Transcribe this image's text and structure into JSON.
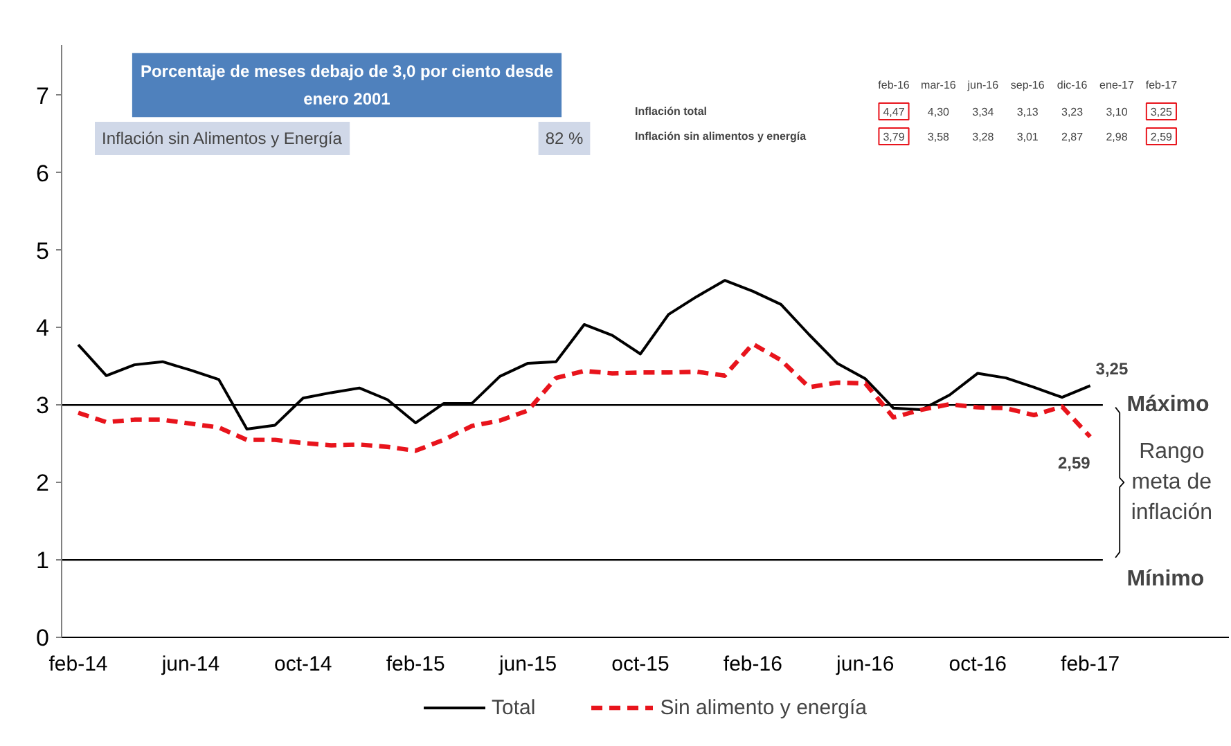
{
  "chart_data": {
    "type": "line",
    "categories": [
      "feb-14",
      null,
      null,
      null,
      "jun-14",
      null,
      null,
      null,
      "oct-14",
      null,
      null,
      null,
      "feb-15",
      null,
      null,
      null,
      "jun-15",
      null,
      null,
      null,
      "oct-15",
      null,
      null,
      null,
      "feb-16",
      null,
      null,
      null,
      "jun-16",
      null,
      null,
      null,
      "oct-16",
      null,
      null,
      null,
      "feb-17"
    ],
    "series": [
      {
        "name": "Total",
        "color": "#000000",
        "line_style": "solid",
        "values": [
          3.78,
          3.38,
          3.52,
          3.56,
          3.45,
          3.33,
          2.69,
          2.74,
          3.09,
          3.16,
          3.22,
          3.07,
          2.77,
          3.02,
          3.02,
          3.37,
          3.54,
          3.56,
          4.04,
          3.9,
          3.66,
          4.17,
          4.4,
          4.61,
          4.47,
          4.3,
          3.91,
          3.54,
          3.34,
          2.96,
          2.94,
          3.13,
          3.41,
          3.35,
          3.23,
          3.1,
          3.25
        ],
        "value_labels": [
          null,
          null,
          null,
          null,
          null,
          null,
          null,
          null,
          null,
          null,
          null,
          null,
          null,
          null,
          null,
          null,
          null,
          null,
          null,
          null,
          null,
          null,
          null,
          null,
          null,
          null,
          null,
          null,
          null,
          null,
          null,
          null,
          null,
          null,
          null,
          null,
          "3,25"
        ]
      },
      {
        "name": "Sin alimento y energía",
        "color": "#e8141c",
        "line_style": "dashed",
        "values": [
          2.9,
          2.78,
          2.81,
          2.81,
          2.76,
          2.71,
          2.55,
          2.55,
          2.51,
          2.48,
          2.49,
          2.46,
          2.41,
          2.55,
          2.73,
          2.8,
          2.93,
          3.35,
          3.44,
          3.41,
          3.42,
          3.42,
          3.43,
          3.38,
          3.79,
          3.58,
          3.23,
          3.29,
          3.28,
          2.84,
          2.94,
          3.01,
          2.97,
          2.96,
          2.87,
          2.98,
          2.59
        ],
        "value_labels": [
          null,
          null,
          null,
          null,
          null,
          null,
          null,
          null,
          null,
          null,
          null,
          null,
          null,
          null,
          null,
          null,
          null,
          null,
          null,
          null,
          null,
          null,
          null,
          null,
          null,
          null,
          null,
          null,
          null,
          null,
          null,
          null,
          null,
          null,
          null,
          null,
          "2,59"
        ]
      }
    ],
    "ylim": [
      0,
      7.65
    ],
    "yticks": [
      0,
      1,
      2,
      3,
      4,
      5,
      6,
      7
    ],
    "ref_lines": [
      {
        "axis": "y",
        "value": 3,
        "label": "Máximo",
        "color": "#000000"
      },
      {
        "axis": "y",
        "value": 1,
        "label": "Mínimo",
        "color": "#000000"
      }
    ],
    "annotations": [
      "Porcentaje de meses debajo de 3,0 por ciento desde enero 2001",
      "Inflación sin Alimentos y Energía",
      "82 %",
      "feb-16",
      "mar-16",
      "jun-16",
      "sep-16",
      "dic-16",
      "ene-17",
      "feb-17",
      "Inflación total",
      "4,47",
      "4,30",
      "3,34",
      "3,13",
      "3,23",
      "3,10",
      "3,25",
      "Inflación sin alimentos y energía",
      "3,79",
      "3,58",
      "3,28",
      "3,01",
      "2,87",
      "2,98",
      "2,59",
      "Rango meta de inflación"
    ],
    "legend": "bottom"
  }
}
